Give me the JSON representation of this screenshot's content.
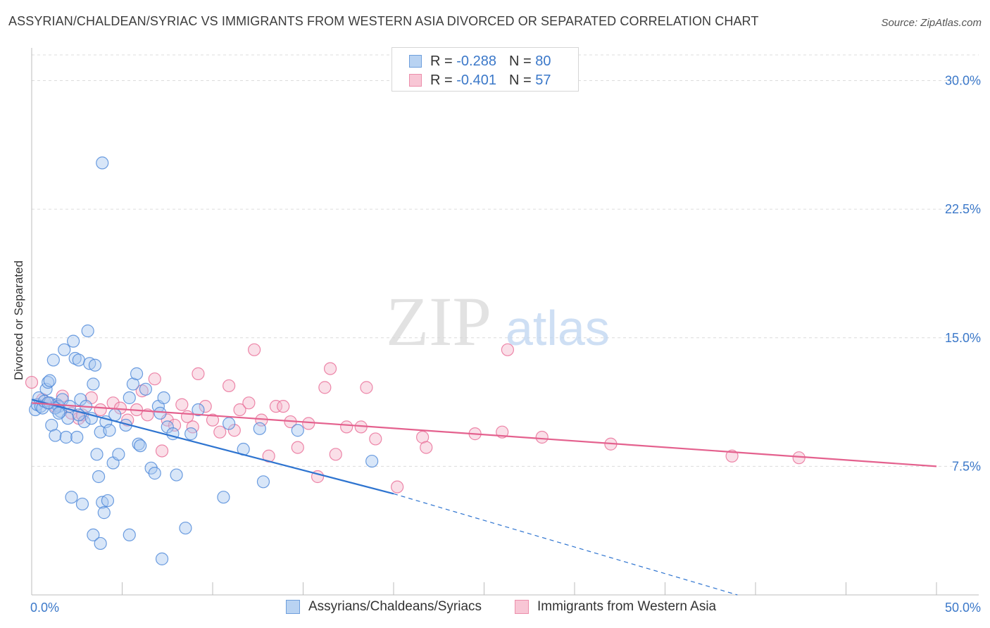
{
  "title": "ASSYRIAN/CHALDEAN/SYRIAC VS IMMIGRANTS FROM WESTERN ASIA DIVORCED OR SEPARATED CORRELATION CHART",
  "source": "Source: ZipAtlas.com",
  "watermark": {
    "zip": "ZIP",
    "atlas": "atlas"
  },
  "legend": {
    "rows": [
      {
        "r_label": "R = ",
        "r_value": "-0.288",
        "n_label": "N = ",
        "n_value": "80",
        "color": "#8fb8ec"
      },
      {
        "r_label": "R = ",
        "r_value": "-0.401",
        "n_label": "N = ",
        "n_value": "57",
        "color": "#f4a9c0"
      }
    ]
  },
  "colors": {
    "blue": "#4a86d8",
    "blue_fill": "#a8c8f0",
    "pink": "#e96a95",
    "pink_fill": "#f5b8cb",
    "tick_label": "#3b78c9"
  },
  "chart_data": {
    "type": "scatter",
    "title": "ASSYRIAN/CHALDEAN/SYRIAC VS IMMIGRANTS FROM WESTERN ASIA DIVORCED OR SEPARATED CORRELATION CHART",
    "xlabel": "",
    "ylabel": "Divorced or Separated",
    "xlim": [
      0,
      50
    ],
    "ylim": [
      0,
      31.5
    ],
    "x_tick_labels": [
      "0.0%",
      "50.0%"
    ],
    "y_ticks": [
      7.5,
      15.0,
      22.5,
      30.0
    ],
    "y_tick_labels": [
      "7.5%",
      "15.0%",
      "22.5%",
      "30.0%"
    ],
    "grid": true,
    "series": [
      {
        "name": "Assyrians/Chaldeans/Syriacs",
        "color": "#4a86d8",
        "points": [
          [
            0.2,
            10.8
          ],
          [
            0.3,
            11.1
          ],
          [
            0.4,
            11.5
          ],
          [
            0.5,
            11.0
          ],
          [
            0.6,
            10.9
          ],
          [
            0.7,
            11.3
          ],
          [
            0.8,
            12.0
          ],
          [
            0.9,
            12.4
          ],
          [
            1.0,
            11.2
          ],
          [
            1.1,
            9.9
          ],
          [
            1.2,
            13.7
          ],
          [
            1.3,
            9.3
          ],
          [
            1.4,
            11.1
          ],
          [
            1.5,
            11.0
          ],
          [
            1.6,
            10.7
          ],
          [
            1.7,
            11.4
          ],
          [
            1.8,
            14.3
          ],
          [
            1.9,
            9.2
          ],
          [
            2.0,
            10.3
          ],
          [
            2.1,
            11.0
          ],
          [
            2.2,
            5.7
          ],
          [
            2.3,
            14.8
          ],
          [
            2.4,
            13.8
          ],
          [
            2.5,
            9.2
          ],
          [
            2.6,
            13.7
          ],
          [
            2.7,
            11.4
          ],
          [
            2.8,
            5.3
          ],
          [
            2.9,
            10.1
          ],
          [
            3.0,
            11.0
          ],
          [
            3.1,
            15.4
          ],
          [
            3.2,
            13.5
          ],
          [
            3.3,
            10.3
          ],
          [
            3.4,
            12.3
          ],
          [
            3.5,
            13.4
          ],
          [
            3.6,
            8.2
          ],
          [
            3.7,
            6.9
          ],
          [
            3.8,
            9.5
          ],
          [
            3.9,
            5.4
          ],
          [
            4.0,
            4.8
          ],
          [
            4.1,
            10.1
          ],
          [
            4.2,
            5.5
          ],
          [
            4.3,
            9.6
          ],
          [
            4.5,
            7.7
          ],
          [
            4.6,
            10.5
          ],
          [
            4.8,
            8.2
          ],
          [
            5.2,
            9.9
          ],
          [
            5.4,
            11.5
          ],
          [
            5.6,
            12.3
          ],
          [
            5.8,
            12.9
          ],
          [
            5.9,
            8.8
          ],
          [
            6.0,
            8.7
          ],
          [
            6.3,
            12.0
          ],
          [
            6.6,
            7.4
          ],
          [
            6.8,
            7.1
          ],
          [
            7.0,
            11.0
          ],
          [
            7.1,
            10.6
          ],
          [
            7.3,
            11.5
          ],
          [
            7.5,
            9.8
          ],
          [
            7.8,
            9.4
          ],
          [
            8.0,
            7.0
          ],
          [
            8.5,
            3.9
          ],
          [
            8.8,
            9.4
          ],
          [
            9.2,
            10.8
          ],
          [
            10.6,
            5.7
          ],
          [
            10.9,
            10.0
          ],
          [
            11.7,
            8.5
          ],
          [
            12.6,
            9.7
          ],
          [
            12.8,
            6.6
          ],
          [
            14.7,
            9.6
          ],
          [
            18.8,
            7.8
          ],
          [
            1.0,
            12.5
          ],
          [
            1.3,
            10.9
          ],
          [
            1.5,
            10.6
          ],
          [
            0.9,
            11.2
          ],
          [
            3.4,
            3.5
          ],
          [
            5.4,
            3.5
          ],
          [
            7.2,
            2.1
          ],
          [
            2.6,
            10.5
          ],
          [
            3.8,
            3.0
          ],
          [
            3.9,
            25.2
          ]
        ],
        "trend": {
          "x": [
            0,
            20
          ],
          "y": [
            11.4,
            5.9
          ],
          "dashed_to": [
            39,
            0
          ]
        }
      },
      {
        "name": "Immigrants from Western Asia",
        "color": "#e96a95",
        "points": [
          [
            0.0,
            12.4
          ],
          [
            0.6,
            11.4
          ],
          [
            0.9,
            11.2
          ],
          [
            1.3,
            11.0
          ],
          [
            1.7,
            11.6
          ],
          [
            2.2,
            10.6
          ],
          [
            2.6,
            10.3
          ],
          [
            2.8,
            10.5
          ],
          [
            3.3,
            11.5
          ],
          [
            3.8,
            10.8
          ],
          [
            4.5,
            11.2
          ],
          [
            4.9,
            10.9
          ],
          [
            5.3,
            10.2
          ],
          [
            5.8,
            10.8
          ],
          [
            6.1,
            11.9
          ],
          [
            6.4,
            10.5
          ],
          [
            6.8,
            12.6
          ],
          [
            7.2,
            8.4
          ],
          [
            7.5,
            10.2
          ],
          [
            7.9,
            9.9
          ],
          [
            8.3,
            11.1
          ],
          [
            8.6,
            10.4
          ],
          [
            8.9,
            9.8
          ],
          [
            9.2,
            12.9
          ],
          [
            9.6,
            11.0
          ],
          [
            10.0,
            10.2
          ],
          [
            10.4,
            9.5
          ],
          [
            10.9,
            12.2
          ],
          [
            11.2,
            9.6
          ],
          [
            11.5,
            10.8
          ],
          [
            12.0,
            11.2
          ],
          [
            12.3,
            14.3
          ],
          [
            12.7,
            10.2
          ],
          [
            13.1,
            8.1
          ],
          [
            13.5,
            11.0
          ],
          [
            13.9,
            11.0
          ],
          [
            14.3,
            10.1
          ],
          [
            14.7,
            8.6
          ],
          [
            15.3,
            10.0
          ],
          [
            15.8,
            6.9
          ],
          [
            16.2,
            12.1
          ],
          [
            16.5,
            13.2
          ],
          [
            16.8,
            8.2
          ],
          [
            17.4,
            9.8
          ],
          [
            18.2,
            9.8
          ],
          [
            18.5,
            12.1
          ],
          [
            19.0,
            9.1
          ],
          [
            20.2,
            6.3
          ],
          [
            21.6,
            9.2
          ],
          [
            21.8,
            8.6
          ],
          [
            24.5,
            9.4
          ],
          [
            26.0,
            9.5
          ],
          [
            26.3,
            14.3
          ],
          [
            28.2,
            9.2
          ],
          [
            32.0,
            8.8
          ],
          [
            38.7,
            8.1
          ],
          [
            42.4,
            8.0
          ]
        ],
        "trend": {
          "x": [
            0,
            50
          ],
          "y": [
            11.2,
            7.5
          ]
        }
      }
    ]
  },
  "bottom_legend": [
    {
      "label": "Assyrians/Chaldeans/Syriacs"
    },
    {
      "label": "Immigrants from Western Asia"
    }
  ]
}
